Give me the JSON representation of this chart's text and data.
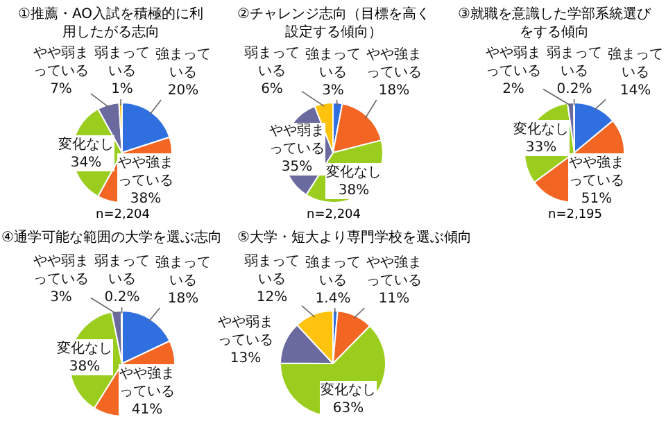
{
  "chart_data": [
    {
      "type": "pie",
      "title": "①推薦・AO入試を積極的に利用したがる志向",
      "categories": [
        "強まっている",
        "やや強まっている",
        "変化なし",
        "やや弱まっている",
        "弱まっている"
      ],
      "values": [
        20,
        38,
        34,
        7,
        1
      ],
      "colors": [
        "#2f6fe0",
        "#f26522",
        "#9acd1e",
        "#6a6a9e",
        "#ffc20e"
      ],
      "value_labels": [
        "20%",
        "38%",
        "34%",
        "7%",
        "1%"
      ],
      "annotations": [
        "n=2,204"
      ]
    },
    {
      "type": "pie",
      "title": "②チャレンジ志向（目標を高く設定する傾向）",
      "categories": [
        "強まっている",
        "やや強まっている",
        "変化なし",
        "やや弱まっている",
        "弱まっている"
      ],
      "values": [
        3,
        18,
        38,
        35,
        6
      ],
      "colors": [
        "#2f6fe0",
        "#f26522",
        "#9acd1e",
        "#6a6a9e",
        "#ffc20e"
      ],
      "value_labels": [
        "3%",
        "18%",
        "38%",
        "35%",
        "6%"
      ],
      "annotations": [
        "n=2,204"
      ]
    },
    {
      "type": "pie",
      "title": "③就職を意識した学部系統選びをする傾向",
      "categories": [
        "強まっている",
        "やや強まっている",
        "変化なし",
        "やや弱まっている",
        "弱まっている"
      ],
      "values": [
        14,
        51,
        33,
        2,
        0.2
      ],
      "colors": [
        "#2f6fe0",
        "#f26522",
        "#9acd1e",
        "#6a6a9e",
        "#ffc20e"
      ],
      "value_labels": [
        "14%",
        "51%",
        "33%",
        "2%",
        "0.2%"
      ],
      "annotations": [
        "n=2,195"
      ]
    },
    {
      "type": "pie",
      "title": "④通学可能な範囲の大学を選ぶ志向",
      "categories": [
        "強まっている",
        "やや強まっている",
        "変化なし",
        "やや弱まっている",
        "弱まっている"
      ],
      "values": [
        18,
        41,
        38,
        3,
        0.2
      ],
      "colors": [
        "#2f6fe0",
        "#f26522",
        "#9acd1e",
        "#6a6a9e",
        "#ffc20e"
      ],
      "value_labels": [
        "18%",
        "41%",
        "38%",
        "3%",
        "0.2%"
      ]
    },
    {
      "type": "pie",
      "title": "⑤大学・短大より専門学校を選ぶ傾向",
      "categories": [
        "強まっている",
        "やや強まっている",
        "変化なし",
        "やや弱まっている",
        "弱まっている"
      ],
      "values": [
        1.4,
        11,
        63,
        13,
        12
      ],
      "colors": [
        "#2f6fe0",
        "#f26522",
        "#9acd1e",
        "#6a6a9e",
        "#ffc20e"
      ],
      "value_labels": [
        "1.4%",
        "11%",
        "63%",
        "13%",
        "12%"
      ]
    }
  ]
}
